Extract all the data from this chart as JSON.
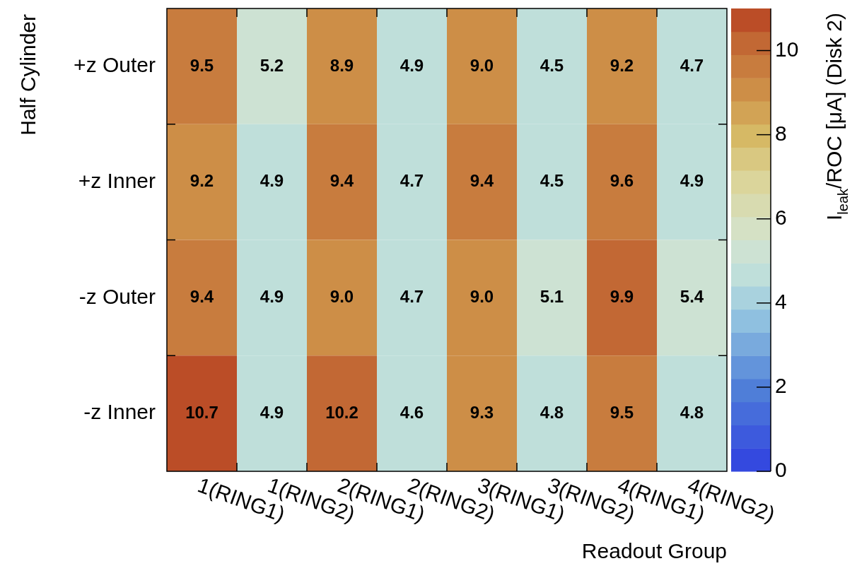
{
  "chart_data": {
    "type": "heatmap",
    "xlabel": "Readout Group",
    "ylabel": "Half Cylinder",
    "clabel": "I$_{leak}$/ROC [μA] (Disk 2)",
    "categories": [
      "1(RING1)",
      "1(RING2)",
      "2(RING1)",
      "2(RING2)",
      "3(RING1)",
      "3(RING2)",
      "4(RING1)",
      "4(RING2)"
    ],
    "y_categories": [
      "+z Outer",
      "+z Inner",
      "-z Outer",
      "-z Inner"
    ],
    "cells": [
      [
        9.5,
        5.2,
        8.9,
        4.9,
        9.0,
        4.5,
        9.2,
        4.7
      ],
      [
        9.2,
        4.9,
        9.4,
        4.7,
        9.4,
        4.5,
        9.6,
        4.9
      ],
      [
        9.4,
        4.9,
        9.0,
        4.7,
        9.0,
        5.1,
        9.9,
        5.4
      ],
      [
        10.7,
        4.9,
        10.2,
        4.6,
        9.3,
        4.8,
        9.5,
        4.8
      ]
    ],
    "cell_labels": [
      [
        "9.5",
        "5.2",
        "8.9",
        "4.9",
        "9.0",
        "4.5",
        "9.2",
        "4.7"
      ],
      [
        "9.2",
        "4.9",
        "9.4",
        "4.7",
        "9.4",
        "4.5",
        "9.6",
        "4.9"
      ],
      [
        "9.4",
        "4.9",
        "9.0",
        "4.7",
        "9.0",
        "5.1",
        "9.9",
        "5.4"
      ],
      [
        "10.7",
        "4.9",
        "10.2",
        "4.6",
        "9.3",
        "4.8",
        "9.5",
        "4.8"
      ]
    ],
    "clim": [
      0,
      11
    ],
    "cticks": [
      0,
      2,
      4,
      6,
      8,
      10
    ]
  }
}
